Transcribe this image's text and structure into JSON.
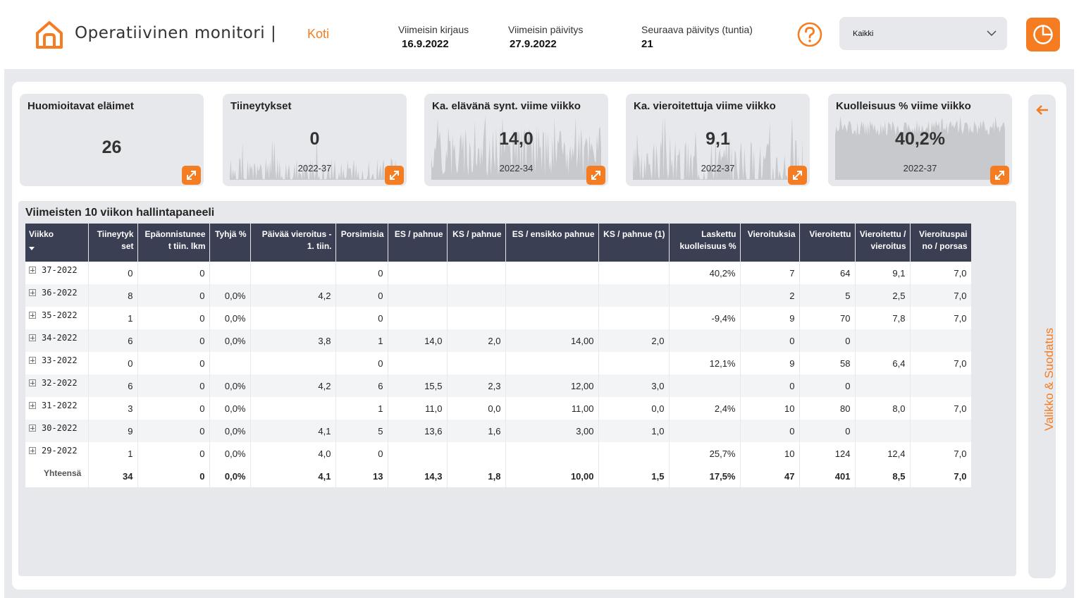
{
  "header": {
    "title": "Operatiivinen monitori |",
    "nav_home": "Koti",
    "last_entry_label": "Viimeisin kirjaus",
    "last_entry_value": "16.9.2022",
    "last_update_label": "Viimeisin päivitys",
    "last_update_value": "27.9.2022",
    "next_update_label": "Seuraava päivitys (tuntia)",
    "next_update_value": "21",
    "filter_value": "Kaikki"
  },
  "colors": {
    "accent": "#f57c20",
    "header_dark": "#3b3f53",
    "card_bg": "#e6e8ec"
  },
  "kpis": [
    {
      "title": "Huomioitavat eläimet",
      "value": "26",
      "sub": ""
    },
    {
      "title": "Tiineytykset",
      "value": "0",
      "sub": "2022-37"
    },
    {
      "title": "Ka. elävänä synt. viime viikko",
      "value": "14,0",
      "sub": "2022-34"
    },
    {
      "title": "Ka. vieroitettuja viime viikko",
      "value": "9,1",
      "sub": "2022-37"
    },
    {
      "title": "Kuolleisuus % viime viikko",
      "value": "40,2%",
      "sub": "2022-37"
    }
  ],
  "side_panel": {
    "label": "Valikko & Suodatus"
  },
  "table": {
    "title": "Viimeisten 10 viikon hallintapaneeli",
    "columns": [
      "Viikko",
      "Tiineytyk set",
      "Epäonnistunee t tiin. lkm",
      "Tyhjä %",
      "Päivää vieroitus - 1. tiin.",
      "Porsimisia",
      "ES / pahnue",
      "KS / pahnue",
      "ES / ensikko pahnue",
      "KS / pahnue (1)",
      "Laskettu kuolleisuus %",
      "Vieroituksia",
      "Vieroitettu",
      "Vieroitettu / vieroitus",
      "Vieroituspai no / porsas"
    ],
    "rows": [
      [
        "37-2022",
        "0",
        "0",
        "",
        "",
        "0",
        "",
        "",
        "",
        "",
        "40,2%",
        "7",
        "64",
        "9,1",
        "7,0"
      ],
      [
        "36-2022",
        "8",
        "0",
        "0,0%",
        "4,2",
        "0",
        "",
        "",
        "",
        "",
        "",
        "2",
        "5",
        "2,5",
        "7,0"
      ],
      [
        "35-2022",
        "1",
        "0",
        "0,0%",
        "",
        "0",
        "",
        "",
        "",
        "",
        "-9,4%",
        "9",
        "70",
        "7,8",
        "7,0"
      ],
      [
        "34-2022",
        "6",
        "0",
        "0,0%",
        "3,8",
        "1",
        "14,0",
        "2,0",
        "14,00",
        "2,0",
        "",
        "0",
        "0",
        "",
        ""
      ],
      [
        "33-2022",
        "0",
        "0",
        "",
        "",
        "0",
        "",
        "",
        "",
        "",
        "12,1%",
        "9",
        "58",
        "6,4",
        "7,0"
      ],
      [
        "32-2022",
        "6",
        "0",
        "0,0%",
        "4,2",
        "6",
        "15,5",
        "2,3",
        "12,00",
        "3,0",
        "",
        "0",
        "0",
        "",
        ""
      ],
      [
        "31-2022",
        "3",
        "0",
        "0,0%",
        "",
        "1",
        "11,0",
        "0,0",
        "11,00",
        "0,0",
        "2,4%",
        "10",
        "80",
        "8,0",
        "7,0"
      ],
      [
        "30-2022",
        "9",
        "0",
        "0,0%",
        "4,1",
        "5",
        "13,6",
        "1,6",
        "3,00",
        "1,0",
        "",
        "0",
        "0",
        "",
        ""
      ],
      [
        "29-2022",
        "1",
        "0",
        "0,0%",
        "4,0",
        "0",
        "",
        "",
        "",
        "",
        "25,7%",
        "10",
        "124",
        "12,4",
        "7,0"
      ]
    ],
    "total": [
      "Yhteensä",
      "34",
      "0",
      "0,0%",
      "4,1",
      "13",
      "14,3",
      "1,8",
      "10,00",
      "1,5",
      "17,5%",
      "47",
      "401",
      "8,5",
      "7,0"
    ]
  }
}
